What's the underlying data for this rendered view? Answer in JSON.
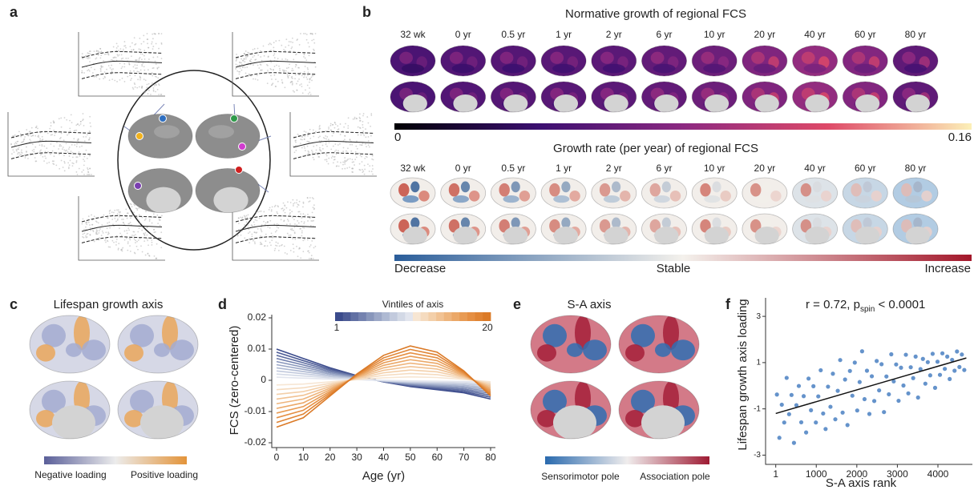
{
  "panel_labels": [
    "a",
    "b",
    "c",
    "d",
    "e",
    "f"
  ],
  "panel_b": {
    "title": "Normative growth of regional FCS",
    "ages": [
      "32 wk",
      "0 yr",
      "0.5 yr",
      "1 yr",
      "2 yr",
      "6 yr",
      "10 yr",
      "20 yr",
      "40 yr",
      "60 yr",
      "80 yr"
    ],
    "colorbar_ticks": [
      0,
      0.16
    ],
    "rate_title": "Growth rate (per year) of regional FCS",
    "rate_ages": [
      "32 wk",
      "0 yr",
      "0.5 yr",
      "1 yr",
      "2 yr",
      "6 yr",
      "10 yr",
      "20 yr",
      "40 yr",
      "60 yr",
      "80 yr"
    ],
    "rate_labels": [
      "Decrease",
      "Stable",
      "Increase"
    ]
  },
  "panel_c": {
    "title": "Lifespan growth axis",
    "colorbar_labels": [
      "Negative loading",
      "Positive loading"
    ]
  },
  "panel_e": {
    "title": "S-A axis",
    "colorbar_labels": [
      "Sensorimotor pole",
      "Association pole"
    ]
  },
  "chart_data": [
    {
      "type": "line",
      "ylabel": "FCS (zero-centered)",
      "xlabel": "Age (yr)",
      "legend_title": "Vintiles of axis",
      "legend_labels": [
        "1",
        "20"
      ],
      "x": [
        0,
        10,
        20,
        30,
        40,
        50,
        60,
        70,
        80
      ],
      "xlim": [
        0,
        80
      ],
      "ylim": [
        -0.02,
        0.02
      ],
      "xticks": [
        0,
        10,
        20,
        30,
        40,
        50,
        60,
        70,
        80
      ],
      "yticks": [
        0.02,
        0.01,
        0,
        -0.01,
        -0.02
      ],
      "series": [
        {
          "color": "#3b4b8c",
          "values": [
            0.01,
            0.007,
            0.004,
            0.0015,
            -0.0005,
            -0.002,
            -0.003,
            -0.004,
            -0.006
          ]
        },
        {
          "color": "#4d5c96",
          "values": [
            0.009,
            0.0063,
            0.0036,
            0.0014,
            -0.0005,
            -0.0018,
            -0.0027,
            -0.0036,
            -0.0054
          ]
        },
        {
          "color": "#6170a3",
          "values": [
            0.008,
            0.0056,
            0.0032,
            0.0012,
            -0.0004,
            -0.0016,
            -0.0024,
            -0.0032,
            -0.0048
          ]
        },
        {
          "color": "#7482af",
          "values": [
            0.007,
            0.0049,
            0.0028,
            0.0011,
            -0.0004,
            -0.0014,
            -0.0021,
            -0.0028,
            -0.0042
          ]
        },
        {
          "color": "#8896bb",
          "values": [
            0.006,
            0.0042,
            0.0024,
            0.0009,
            -0.0003,
            -0.0012,
            -0.0018,
            -0.0024,
            -0.0036
          ]
        },
        {
          "color": "#9ca8c7",
          "values": [
            0.005,
            0.0035,
            0.002,
            0.0008,
            -0.0003,
            -0.001,
            -0.0015,
            -0.002,
            -0.003
          ]
        },
        {
          "color": "#afbad3",
          "values": [
            0.004,
            0.0028,
            0.0016,
            0.0006,
            -0.0002,
            -0.0008,
            -0.0012,
            -0.0016,
            -0.0024
          ]
        },
        {
          "color": "#c2cadd",
          "values": [
            0.003,
            0.0021,
            0.0012,
            0.0005,
            -0.0002,
            -0.0006,
            -0.0009,
            -0.0012,
            -0.0018
          ]
        },
        {
          "color": "#d3d9e6",
          "values": [
            0.002,
            0.0014,
            0.0008,
            0.0003,
            -0.0001,
            -0.0004,
            -0.0006,
            -0.0008,
            -0.0012
          ]
        },
        {
          "color": "#e2e5ee",
          "values": [
            0.001,
            0.0007,
            0.0004,
            0.0002,
            0,
            -0.0002,
            -0.0003,
            -0.0004,
            -0.0006
          ]
        },
        {
          "color": "#f7e6d3",
          "values": [
            -0.0015,
            -0.0012,
            -0.0005,
            0.0002,
            0.0008,
            0.0011,
            0.0009,
            0.0003,
            -0.0005
          ]
        },
        {
          "color": "#f5dbbf",
          "values": [
            -0.003,
            -0.0024,
            -0.001,
            0.0004,
            0.0016,
            0.0022,
            0.0018,
            0.0006,
            -0.001
          ]
        },
        {
          "color": "#f3cfa9",
          "values": [
            -0.0045,
            -0.0036,
            -0.0015,
            0.0006,
            0.0024,
            0.0033,
            0.0027,
            0.0009,
            -0.0015
          ]
        },
        {
          "color": "#f1c293",
          "values": [
            -0.006,
            -0.0048,
            -0.002,
            0.0008,
            0.0032,
            0.0044,
            0.0036,
            0.0012,
            -0.002
          ]
        },
        {
          "color": "#eeb57d",
          "values": [
            -0.0075,
            -0.006,
            -0.0025,
            0.001,
            0.004,
            0.0055,
            0.0045,
            0.0015,
            -0.0025
          ]
        },
        {
          "color": "#eba868",
          "values": [
            -0.009,
            -0.0072,
            -0.003,
            0.0012,
            0.0048,
            0.0066,
            0.0054,
            0.0018,
            -0.003
          ]
        },
        {
          "color": "#e89b54",
          "values": [
            -0.0105,
            -0.0084,
            -0.0035,
            0.0014,
            0.0056,
            0.0077,
            0.0063,
            0.0021,
            -0.0035
          ]
        },
        {
          "color": "#e58f43",
          "values": [
            -0.012,
            -0.0096,
            -0.004,
            0.0016,
            0.0064,
            0.0088,
            0.0072,
            0.0024,
            -0.004
          ]
        },
        {
          "color": "#e08434",
          "values": [
            -0.0135,
            -0.0108,
            -0.0045,
            0.0018,
            0.0072,
            0.0099,
            0.0081,
            0.0027,
            -0.0045
          ]
        },
        {
          "color": "#db7a27",
          "values": [
            -0.015,
            -0.012,
            -0.005,
            0.002,
            0.008,
            0.011,
            0.009,
            0.003,
            -0.005
          ]
        }
      ]
    },
    {
      "type": "scatter",
      "annotation": [
        "r = 0.72, p",
        "spin",
        " < 0.0001"
      ],
      "ylabel": "Lifespan growth axis loading",
      "xlabel": "S-A axis rank",
      "color": "#4a80c2",
      "xlim": [
        -250,
        4850
      ],
      "ylim": [
        -3.4,
        3.8
      ],
      "xticks": [
        1,
        1000,
        2000,
        3000,
        4000
      ],
      "yticks": [
        3,
        1,
        -1,
        -3
      ],
      "trend": {
        "x": [
          1,
          4700
        ],
        "y": [
          -1.2,
          1.2
        ]
      },
      "x": [
        30,
        90,
        150,
        210,
        270,
        330,
        390,
        450,
        510,
        570,
        630,
        690,
        750,
        810,
        870,
        930,
        990,
        1050,
        1110,
        1170,
        1230,
        1290,
        1350,
        1410,
        1470,
        1530,
        1590,
        1650,
        1710,
        1770,
        1830,
        1890,
        1950,
        2010,
        2070,
        2130,
        2190,
        2250,
        2310,
        2370,
        2430,
        2490,
        2550,
        2610,
        2670,
        2730,
        2790,
        2850,
        2910,
        2970,
        3030,
        3090,
        3150,
        3210,
        3270,
        3330,
        3390,
        3450,
        3510,
        3570,
        3630,
        3690,
        3750,
        3810,
        3870,
        3930,
        3990,
        4050,
        4110,
        4170,
        4230,
        4290,
        4350,
        4410,
        4470,
        4530,
        4590,
        4650
      ],
      "y": [
        -0.38,
        -2.25,
        -0.82,
        -1.59,
        0.34,
        -1.23,
        -0.4,
        -2.47,
        -0.84,
        -0.01,
        -1.58,
        -0.45,
        -2.02,
        0.31,
        -1.06,
        -0.02,
        -1.59,
        -0.46,
        0.67,
        -1.2,
        -1.87,
        -0.04,
        -0.91,
        0.52,
        -1.45,
        -0.22,
        1.11,
        -1.16,
        0.27,
        -1.7,
        0.64,
        -0.43,
        1.0,
        -1.07,
        0.16,
        1.49,
        -0.58,
        0.65,
        -1.22,
        0.41,
        -0.66,
        1.07,
        -0.2,
        0.93,
        -1.14,
        0.4,
        -0.37,
        1.36,
        0.19,
        0.92,
        -0.65,
        0.78,
        0.01,
        1.34,
        -0.33,
        0.8,
        0.33,
        1.26,
        -0.51,
        0.72,
        1.16,
        0.09,
        1.02,
        0.45,
        1.38,
        -0.09,
        1.04,
        0.47,
        1.4,
        0.73,
        1.26,
        0.29,
        1.12,
        0.65,
        1.48,
        0.81,
        1.35,
        0.68
      ]
    }
  ]
}
